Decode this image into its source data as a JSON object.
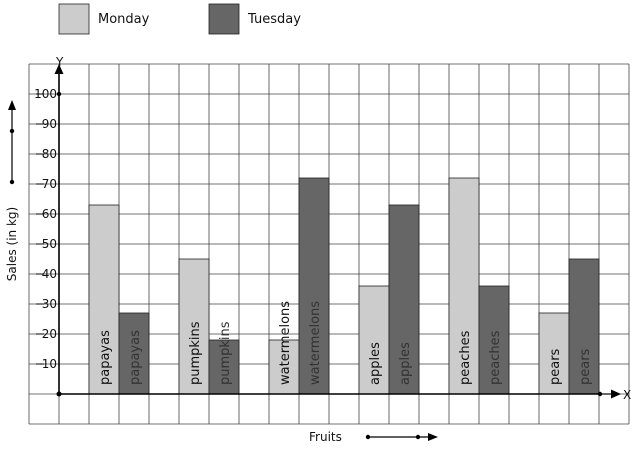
{
  "chart_data": {
    "type": "bar",
    "categories": [
      "papayas",
      "pumpkins",
      "watermelons",
      "apples",
      "peaches",
      "pears"
    ],
    "series": [
      {
        "name": "Monday",
        "values": [
          63,
          45,
          18,
          36,
          72,
          27
        ],
        "color": "#cccccc",
        "label_color": "#111111"
      },
      {
        "name": "Tuesday",
        "values": [
          27,
          18,
          72,
          63,
          36,
          45
        ],
        "color": "#666666",
        "label_color": "#333333"
      }
    ],
    "xlabel": "Fruits",
    "ylabel": "Sales (in kg)",
    "x_axis_letter": "X",
    "y_axis_letter": "Y",
    "ylim": [
      0,
      100
    ],
    "y_ticks": [
      10,
      20,
      30,
      40,
      50,
      60,
      70,
      80,
      90,
      100
    ],
    "grid": true,
    "legend_position": "top-left"
  }
}
